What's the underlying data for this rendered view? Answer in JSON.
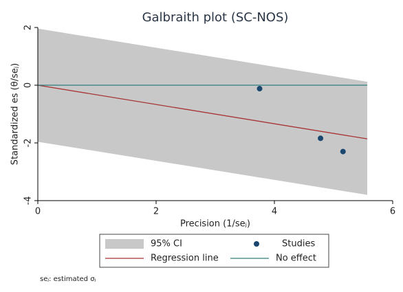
{
  "chart_data": {
    "type": "galbraith",
    "title": "Galbraith plot (SC-NOS)",
    "xlabel": "Precision (1/seⱼ)",
    "ylabel": "Standardized es  (θ/seⱼ)",
    "note": "seⱼ: estimated σⱼ",
    "xlim": [
      0,
      6
    ],
    "xticks": [
      0,
      2,
      4,
      6
    ],
    "ylim": [
      -4,
      2
    ],
    "yticks": [
      -4,
      -2,
      0,
      2
    ],
    "legend": "bottom",
    "series": [
      {
        "name": "95% CI",
        "kind": "band",
        "color": "#c8c8c8",
        "x": [
          0,
          5.57
        ],
        "upper": [
          1.96,
          0.12
        ],
        "lower": [
          -1.96,
          -3.8
        ]
      },
      {
        "name": "Studies",
        "kind": "scatter",
        "color": "#1a476f",
        "x": [
          3.75,
          4.78,
          5.16
        ],
        "values": [
          -0.12,
          -1.84,
          -2.3
        ]
      },
      {
        "name": "Regression line",
        "kind": "line",
        "color": "#a83232",
        "x": [
          0,
          5.57
        ],
        "values": [
          0,
          -1.86
        ]
      },
      {
        "name": "No effect",
        "kind": "line",
        "color": "#2e7d7d",
        "x": [
          0,
          5.57
        ],
        "values": [
          0,
          0
        ]
      }
    ]
  }
}
